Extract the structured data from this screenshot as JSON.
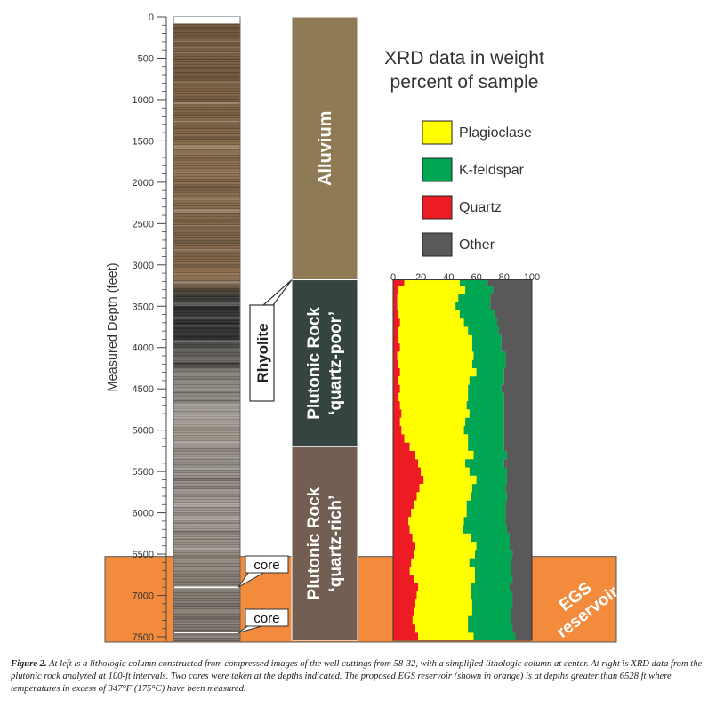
{
  "depth_axis": {
    "label": "Measured Depth (feet)",
    "ticks": [
      "0",
      "500",
      "1000",
      "1500",
      "2000",
      "2500",
      "3000",
      "3500",
      "4000",
      "4500",
      "5000",
      "5500",
      "6000",
      "6500",
      "7000",
      "7500"
    ],
    "tick_values": [
      0,
      500,
      1000,
      1500,
      2000,
      2500,
      3000,
      3500,
      4000,
      4500,
      5000,
      5500,
      6000,
      6500,
      7000,
      7500
    ]
  },
  "xrd_title_line1": "XRD data in weight",
  "xrd_title_line2": "percent of sample",
  "legend": [
    {
      "label": "Plagioclase",
      "color": "#ffff00"
    },
    {
      "label": "K-feldspar",
      "color": "#00a651"
    },
    {
      "label": "Quartz",
      "color": "#ed1c24"
    },
    {
      "label": "Other",
      "color": "#595959"
    }
  ],
  "lithology": [
    {
      "label": "Alluvium",
      "top_ft": 0,
      "bottom_ft": 3180,
      "color": "#8f7a56"
    },
    {
      "label_line1": "Plutonic Rock",
      "label_line2": "‘quartz-poor’",
      "top_ft": 3180,
      "bottom_ft": 5200,
      "color": "#364441"
    },
    {
      "label_line1": "Plutonic Rock",
      "label_line2": "‘quartz-rich’",
      "top_ft": 5200,
      "bottom_ft": 7550,
      "color": "#725e52"
    }
  ],
  "rhyolite_label": "Rhyolite",
  "core_labels": [
    "core",
    "core"
  ],
  "core_depths_ft": [
    6900,
    7450
  ],
  "reservoir": {
    "line1": "EGS",
    "line2": "reservoir",
    "top_ft": 6528,
    "color": "#f38b3c"
  },
  "chart_data": {
    "type": "area",
    "xlabel": "",
    "ylabel": "Measured Depth (feet)",
    "x_ticks": [
      "0",
      "20",
      "40",
      "60",
      "80",
      "100"
    ],
    "xlim": [
      0,
      100
    ],
    "ylim": [
      0,
      7550
    ],
    "depth_ft": [
      3200,
      3300,
      3400,
      3500,
      3600,
      3700,
      3800,
      3900,
      4000,
      4100,
      4200,
      4300,
      4400,
      4500,
      4600,
      4700,
      4800,
      4900,
      5000,
      5100,
      5200,
      5300,
      5400,
      5500,
      5600,
      5700,
      5800,
      5900,
      6000,
      6100,
      6200,
      6300,
      6400,
      6500,
      6600,
      6700,
      6800,
      6900,
      7000,
      7100,
      7200,
      7300,
      7400,
      7500
    ],
    "series": [
      {
        "name": "Quartz",
        "values": [
          8,
          4,
          3,
          3,
          4,
          5,
          4,
          4,
          5,
          3,
          4,
          5,
          4,
          5,
          4,
          5,
          6,
          5,
          6,
          8,
          12,
          16,
          18,
          20,
          22,
          19,
          17,
          15,
          13,
          11,
          12,
          14,
          16,
          15,
          13,
          12,
          15,
          18,
          17,
          16,
          15,
          14,
          16,
          18
        ]
      },
      {
        "name": "Plagioclase",
        "values": [
          40,
          48,
          44,
          42,
          44,
          46,
          50,
          53,
          52,
          55,
          53,
          55,
          51,
          49,
          50,
          48,
          49,
          47,
          45,
          46,
          42,
          42,
          34,
          35,
          38,
          38,
          39,
          38,
          40,
          40,
          38,
          42,
          44,
          44,
          42,
          47,
          44,
          38,
          39,
          41,
          42,
          40,
          38,
          40
        ]
      },
      {
        "name": "K-feldspar",
        "values": [
          20,
          20,
          23,
          25,
          25,
          24,
          22,
          21,
          21,
          23,
          24,
          20,
          25,
          24,
          26,
          27,
          25,
          28,
          29,
          26,
          26,
          24,
          28,
          27,
          22,
          24,
          26,
          28,
          28,
          30,
          32,
          28,
          24,
          27,
          30,
          26,
          27,
          28,
          30,
          29,
          28,
          31,
          32,
          30
        ]
      },
      {
        "name": "Other",
        "values": [
          32,
          28,
          30,
          30,
          27,
          25,
          24,
          22,
          22,
          19,
          19,
          20,
          20,
          22,
          20,
          20,
          20,
          20,
          20,
          20,
          20,
          18,
          20,
          18,
          18,
          19,
          18,
          19,
          19,
          19,
          18,
          16,
          16,
          14,
          15,
          15,
          14,
          16,
          14,
          14,
          15,
          15,
          14,
          12
        ]
      }
    ]
  },
  "caption": {
    "lead": "Figure 2.",
    "text": " At left is a lithologic column constructed from compressed images of the well cuttings from 58-32, with a simplified lithologic column at center. At right is XRD data from the plutonic rock analyzed at 100-ft intervals. Two cores were taken at the depths indicated. The proposed EGS reservoir (shown in orange) is at depths greater than 6528 ft where temperatures in excess of 347°F (175°C) have been measured."
  }
}
